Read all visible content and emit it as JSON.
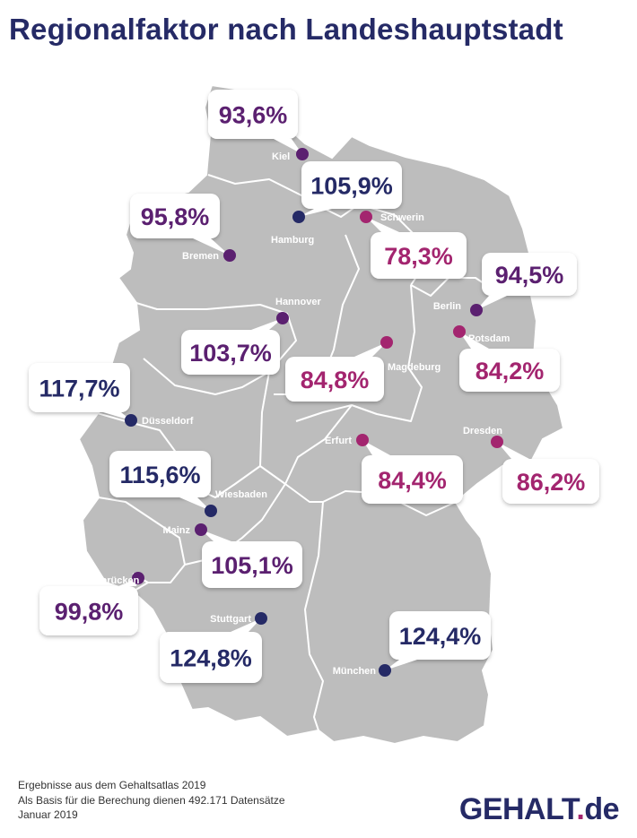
{
  "title": "Regionalfaktor nach Landeshauptstadt",
  "colors": {
    "map_fill": "#bdbdbd",
    "borders": "#ffffff",
    "navy": "#252a66",
    "purple": "#5b2070",
    "magenta": "#a3256f",
    "city_label": "#ffffff"
  },
  "cities": [
    {
      "name": "Kiel",
      "value": "93,6%",
      "color": "purple"
    },
    {
      "name": "Hamburg",
      "value": "105,9%",
      "color": "navy"
    },
    {
      "name": "Schwerin",
      "value": "78,3%",
      "color": "magenta"
    },
    {
      "name": "Bremen",
      "value": "95,8%",
      "color": "purple"
    },
    {
      "name": "Berlin",
      "value": "94,5%",
      "color": "purple"
    },
    {
      "name": "Hannover",
      "value": "103,7%",
      "color": "purple"
    },
    {
      "name": "Potsdam",
      "value": "84,2%",
      "color": "magenta"
    },
    {
      "name": "Magdeburg",
      "value": "84,8%",
      "color": "magenta"
    },
    {
      "name": "Düsseldorf",
      "value": "117,7%",
      "color": "navy"
    },
    {
      "name": "Erfurt",
      "value": "84,4%",
      "color": "magenta"
    },
    {
      "name": "Dresden",
      "value": "86,2%",
      "color": "magenta"
    },
    {
      "name": "Wiesbaden",
      "value": "115,6%",
      "color": "navy"
    },
    {
      "name": "Mainz",
      "value": "105,1%",
      "color": "purple"
    },
    {
      "name": "Saarbrücken",
      "value": "99,8%",
      "color": "purple"
    },
    {
      "name": "Stuttgart",
      "value": "124,8%",
      "color": "navy"
    },
    {
      "name": "München",
      "value": "124,4%",
      "color": "navy"
    }
  ],
  "footer": {
    "line1": "Ergebnisse aus dem Gehaltsatlas 2019",
    "line2": "Als Basis für die Berechung dienen 492.171 Datensätze",
    "line3": "Januar 2019"
  },
  "logo": {
    "main": "GEHALT",
    "dot": ".",
    "tld": "de"
  }
}
